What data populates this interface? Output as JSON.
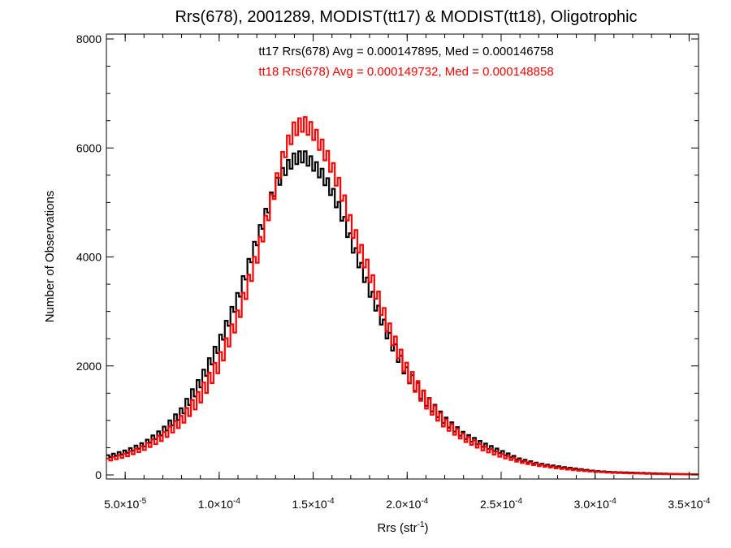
{
  "chart_data": {
    "type": "histogram",
    "title": "Rrs(678), 2001289, MODIST(tt17) & MODIST(tt18), Oligotrophic",
    "xlabel": "Rrs (str",
    "xlabel_sup": "-1",
    "xlabel_end": ")",
    "ylabel": "Number of Observations",
    "xlim": [
      4e-05,
      0.000355
    ],
    "ylim": [
      0,
      8000
    ],
    "x_ticks": [
      {
        "value": 5e-05,
        "mant": "5.0×10",
        "exp": "-5"
      },
      {
        "value": 0.0001,
        "mant": "1.0×10",
        "exp": "-4"
      },
      {
        "value": 0.00015,
        "mant": "1.5×10",
        "exp": "-4"
      },
      {
        "value": 0.0002,
        "mant": "2.0×10",
        "exp": "-4"
      },
      {
        "value": 0.00025,
        "mant": "2.5×10",
        "exp": "-4"
      },
      {
        "value": 0.0003,
        "mant": "3.0×10",
        "exp": "-4"
      },
      {
        "value": 0.00035,
        "mant": "3.5×10",
        "exp": "-4"
      }
    ],
    "y_ticks": [
      {
        "value": 0,
        "label": "0"
      },
      {
        "value": 2000,
        "label": "2000"
      },
      {
        "value": 4000,
        "label": "4000"
      },
      {
        "value": 6000,
        "label": "6000"
      },
      {
        "value": 8000,
        "label": "8000"
      }
    ],
    "bin_width": 1.5e-06,
    "annotations": [
      {
        "text": "tt17 Rrs(678) Avg = 0.000147895, Med = 0.000146758",
        "color": "#000000"
      },
      {
        "text": "tt18 Rrs(678) Avg = 0.000149732, Med = 0.000148858",
        "color": "#ff0000"
      }
    ],
    "series": [
      {
        "color": "#000000",
        "x": [
          4e-05,
          5e-05,
          6e-05,
          7e-05,
          8e-05,
          9e-05,
          0.0001,
          0.00011,
          0.00012,
          0.00013,
          0.000135,
          0.00014,
          0.000145,
          0.00015,
          0.000155,
          0.00016,
          0.000165,
          0.00017,
          0.00018,
          0.00019,
          0.0002,
          0.00021,
          0.00022,
          0.00023,
          0.00024,
          0.00025,
          0.00026,
          0.00027,
          0.00028,
          0.00029,
          0.0003,
          0.00031,
          0.00032,
          0.00033,
          0.00034,
          0.000355
        ],
        "y": [
          330,
          420,
          560,
          800,
          1150,
          1700,
          2400,
          3250,
          4300,
          5300,
          5600,
          5800,
          5850,
          5700,
          5500,
          5200,
          4800,
          4300,
          3400,
          2550,
          1850,
          1380,
          1000,
          730,
          560,
          420,
          280,
          200,
          150,
          110,
          70,
          50,
          40,
          30,
          20,
          10
        ],
        "amp": 110
      },
      {
        "color": "#ff0000",
        "x": [
          4e-05,
          5e-05,
          6e-05,
          7e-05,
          8e-05,
          9e-05,
          0.0001,
          0.00011,
          0.00012,
          0.00013,
          0.000135,
          0.00014,
          0.000145,
          0.00015,
          0.000155,
          0.00016,
          0.000165,
          0.00017,
          0.00018,
          0.00019,
          0.0002,
          0.00021,
          0.00022,
          0.00023,
          0.00024,
          0.00025,
          0.00026,
          0.00027,
          0.00028,
          0.00029,
          0.0003,
          0.00031,
          0.00032,
          0.00033,
          0.00034,
          0.000355
        ],
        "y": [
          270,
          360,
          500,
          700,
          1000,
          1450,
          2050,
          2900,
          4000,
          5300,
          5950,
          6350,
          6450,
          6300,
          6000,
          5650,
          5200,
          4600,
          3700,
          2700,
          1900,
          1350,
          950,
          690,
          500,
          360,
          250,
          180,
          130,
          90,
          60,
          40,
          30,
          20,
          15,
          10
        ],
        "amp": 140
      }
    ]
  }
}
